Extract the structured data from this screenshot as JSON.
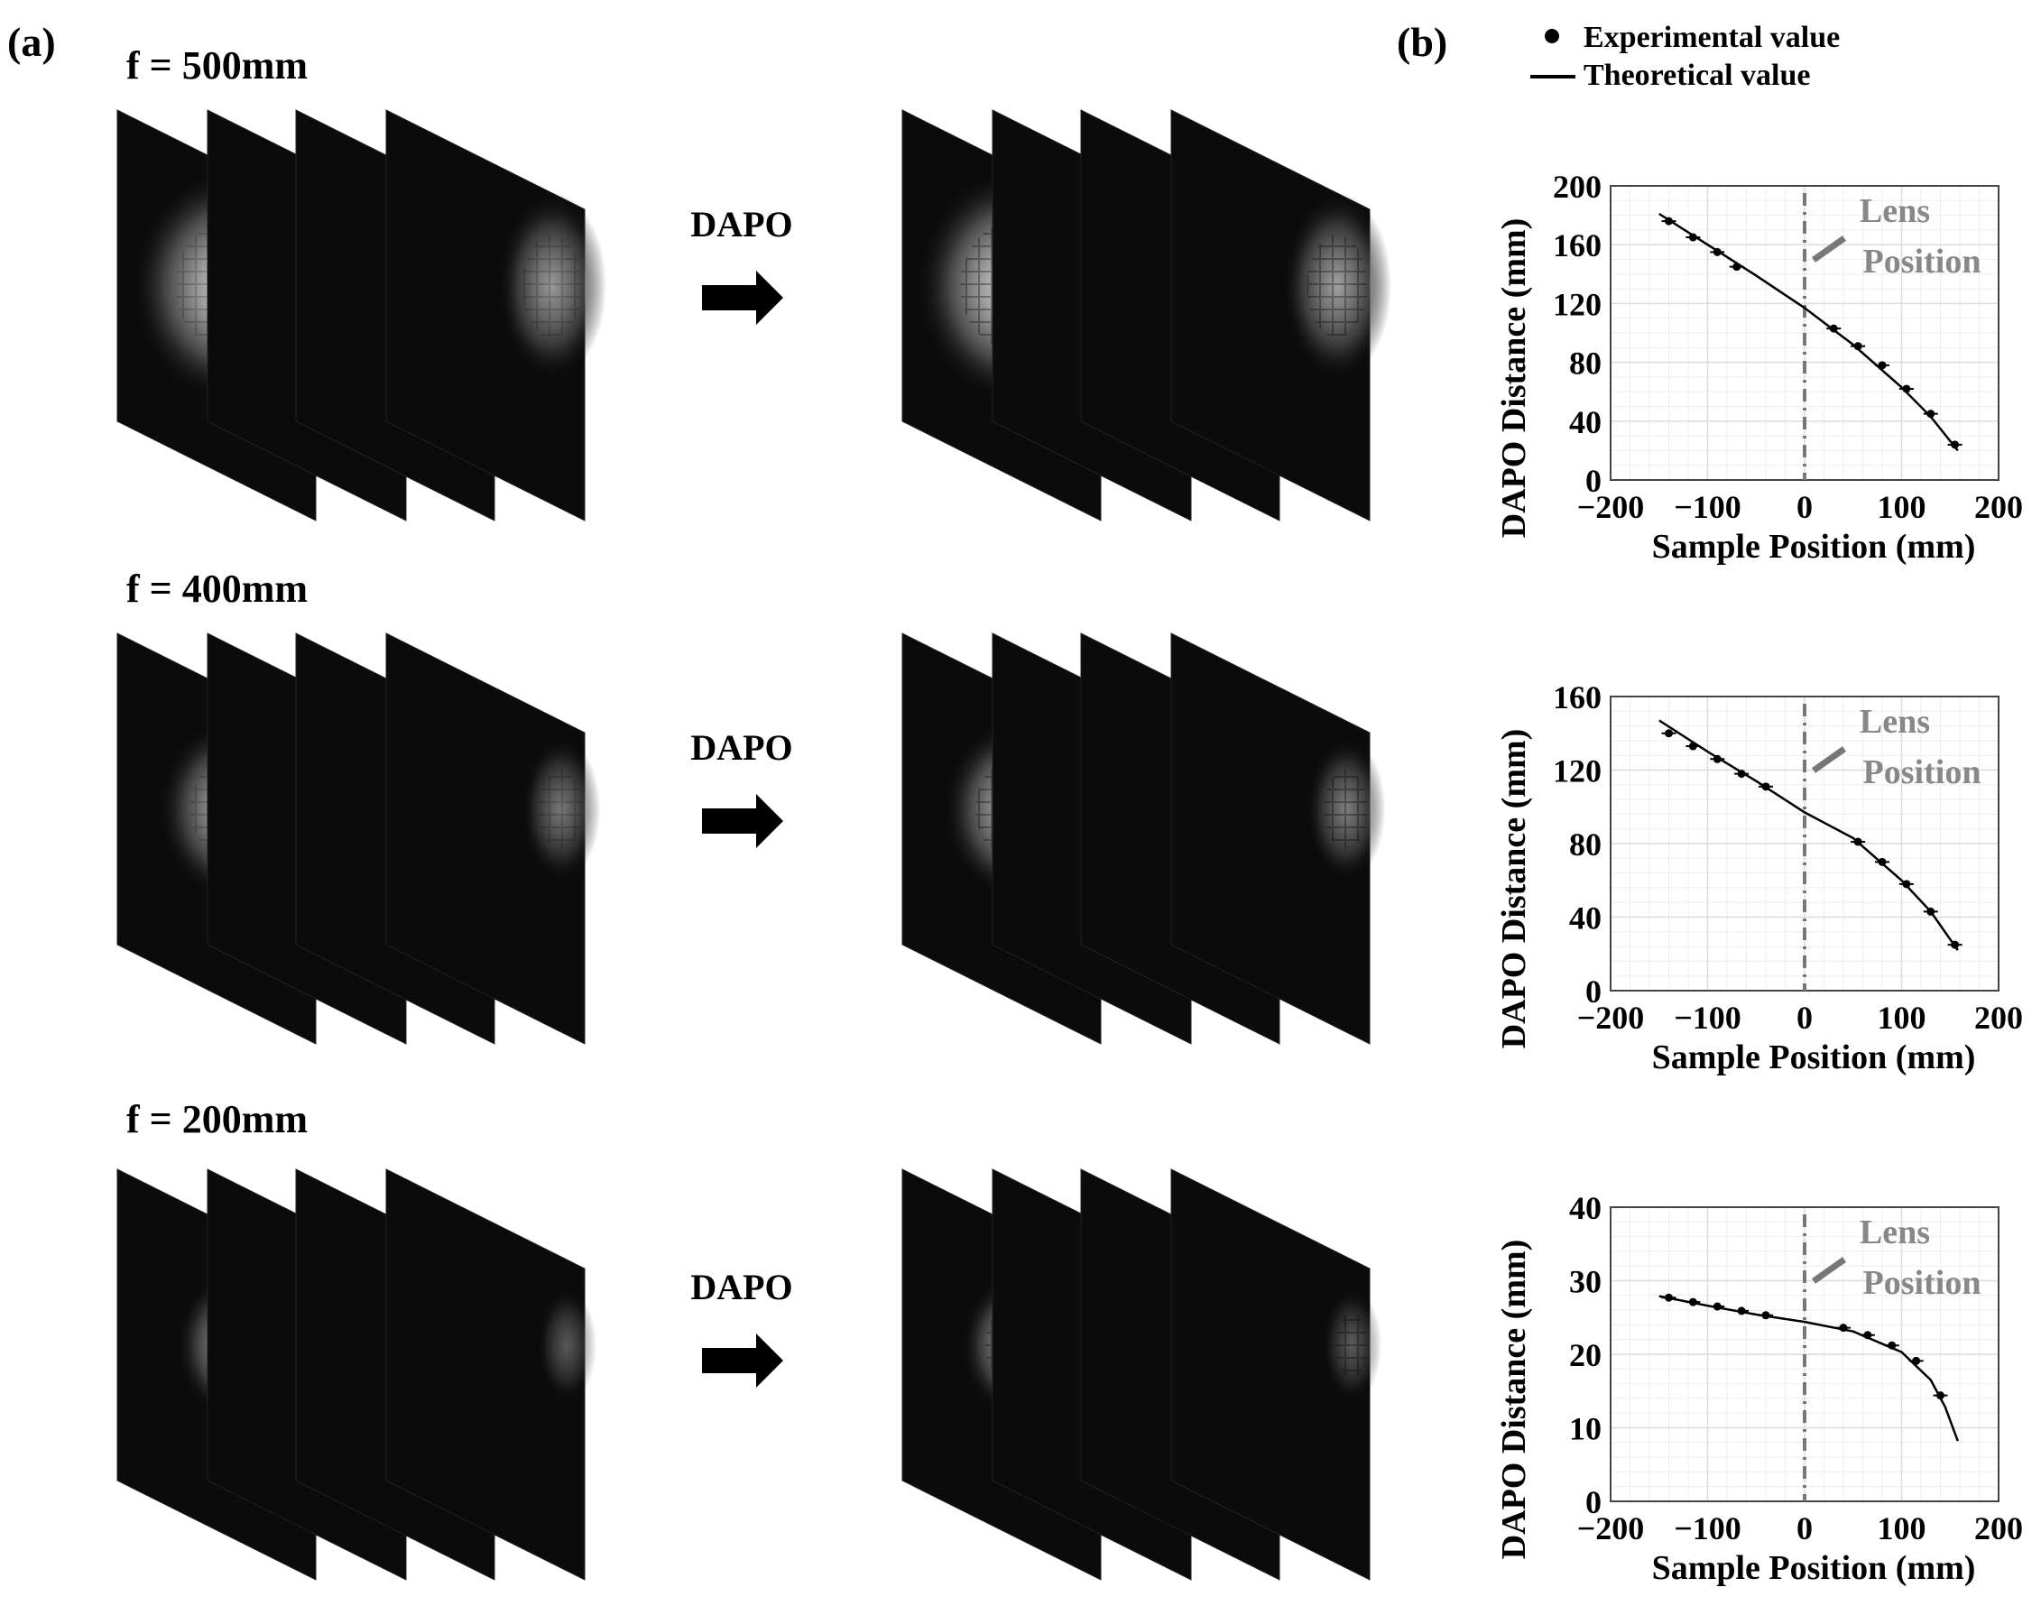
{
  "panel_a": {
    "label": "(a)",
    "rows": [
      {
        "focal_label": "f = 500mm",
        "arrow_label": "DAPO"
      },
      {
        "focal_label": "f = 400mm",
        "arrow_label": "DAPO"
      },
      {
        "focal_label": "f = 200mm",
        "arrow_label": "DAPO"
      }
    ]
  },
  "panel_b": {
    "label": "(b)",
    "legend": {
      "experimental": "Experimental value",
      "theoretical": "Theoretical value"
    },
    "annotation": {
      "line1": "Lens",
      "line2": "Position"
    }
  },
  "chart_data": [
    {
      "type": "scatter",
      "xlabel": "Sample Position (mm)",
      "ylabel": "DAPO Distance (mm)",
      "xlim": [
        -200,
        200
      ],
      "ylim": [
        0,
        200
      ],
      "xticks": [
        "−200",
        "−100",
        "0",
        "100",
        "200"
      ],
      "yticks": [
        "0",
        "40",
        "80",
        "120",
        "160",
        "200"
      ],
      "grid": true,
      "lens_position_x": 0,
      "series": [
        {
          "name": "Experimental value",
          "x": [
            -140,
            -115,
            -90,
            -70,
            30,
            55,
            80,
            105,
            130,
            155
          ],
          "y": [
            176,
            165,
            155,
            145,
            103,
            91,
            78,
            62,
            45,
            24
          ]
        },
        {
          "name": "Theoretical value",
          "x": [
            -150,
            -100,
            -50,
            0,
            50,
            100,
            130,
            158
          ],
          "y": [
            181,
            160,
            139,
            117,
            92,
            63,
            43,
            20
          ]
        }
      ]
    },
    {
      "type": "scatter",
      "xlabel": "Sample Position (mm)",
      "ylabel": "DAPO Distance (mm)",
      "xlim": [
        -200,
        200
      ],
      "ylim": [
        0,
        160
      ],
      "xticks": [
        "−200",
        "−100",
        "0",
        "100",
        "200"
      ],
      "yticks": [
        "0",
        "40",
        "80",
        "120",
        "160"
      ],
      "grid": true,
      "lens_position_x": 0,
      "series": [
        {
          "name": "Experimental value",
          "x": [
            -140,
            -115,
            -90,
            -65,
            -40,
            55,
            80,
            105,
            130,
            155
          ],
          "y": [
            140,
            133,
            126,
            118,
            111,
            81,
            70,
            58,
            43,
            25
          ]
        },
        {
          "name": "Theoretical value",
          "x": [
            -150,
            -100,
            -50,
            0,
            50,
            100,
            130,
            158
          ],
          "y": [
            147,
            130,
            114,
            97,
            83,
            60,
            43,
            22
          ]
        }
      ]
    },
    {
      "type": "scatter",
      "xlabel": "Sample Position (mm)",
      "ylabel": "DAPO Distance (mm)",
      "xlim": [
        -200,
        200
      ],
      "ylim": [
        0,
        40
      ],
      "xticks": [
        "−200",
        "−100",
        "0",
        "100",
        "200"
      ],
      "yticks": [
        "0",
        "10",
        "20",
        "30",
        "40"
      ],
      "grid": true,
      "lens_position_x": 0,
      "series": [
        {
          "name": "Experimental value",
          "x": [
            -140,
            -115,
            -90,
            -65,
            -40,
            40,
            65,
            90,
            115,
            140
          ],
          "y": [
            27.7,
            27.1,
            26.5,
            25.9,
            25.3,
            23.6,
            22.6,
            21.2,
            19.1,
            14.4
          ]
        },
        {
          "name": "Theoretical value",
          "x": [
            -150,
            -100,
            -50,
            0,
            50,
            100,
            130,
            145,
            158
          ],
          "y": [
            27.9,
            26.6,
            25.4,
            24.4,
            23.1,
            20.3,
            16.5,
            12.8,
            8.2
          ]
        }
      ]
    }
  ],
  "colors": {
    "axis": "#000000",
    "grid": "#dcdcdc",
    "lens_line": "#777777",
    "lens_text": "#888888",
    "curve": "#000000"
  }
}
